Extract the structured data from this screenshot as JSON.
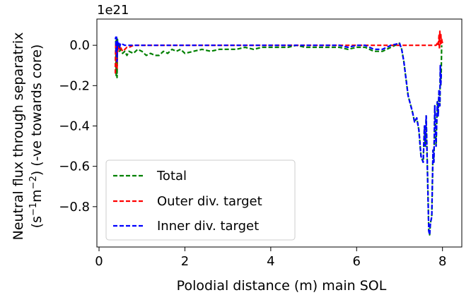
{
  "chart_data": {
    "type": "line",
    "offset_label": "1e21",
    "xlabel": "Polodial distance (m) main SOL",
    "ylabel_line1": "Neutral flux through separatrix",
    "ylabel_line2_prefix": "(s",
    "ylabel_line2_exp1": "−1",
    "ylabel_line2_mid": "m",
    "ylabel_line2_exp2": "−2",
    "ylabel_line2_suffix": ") (-ve towards core)",
    "xlim": [
      -0.05,
      8.45
    ],
    "ylim": [
      -1.0,
      0.13
    ],
    "x_ticks": [
      0,
      2,
      4,
      6,
      8
    ],
    "x_tick_labels": [
      "0",
      "2",
      "4",
      "6",
      "8"
    ],
    "y_ticks": [
      0.0,
      -0.2,
      -0.4,
      -0.6,
      -0.8
    ],
    "y_tick_labels": [
      "0.0",
      "−0.2",
      "−0.4",
      "−0.6",
      "−0.8"
    ],
    "legend_position": "lower-left",
    "grid": false,
    "series": [
      {
        "name": "Total",
        "color": "#008000",
        "x": [
          0.38,
          0.39,
          0.4,
          0.41,
          0.42,
          0.43,
          0.44,
          0.46,
          0.48,
          0.5,
          0.55,
          0.6,
          0.65,
          0.7,
          0.8,
          0.9,
          1.0,
          1.1,
          1.2,
          1.3,
          1.4,
          1.5,
          1.6,
          1.7,
          1.8,
          1.9,
          2.0,
          2.2,
          2.4,
          2.6,
          2.8,
          3.0,
          3.2,
          3.4,
          3.6,
          3.8,
          4.0,
          4.2,
          4.4,
          4.6,
          4.8,
          5.0,
          5.2,
          5.4,
          5.6,
          5.8,
          6.0,
          6.2,
          6.4,
          6.6,
          6.8,
          7.0,
          7.05,
          7.1,
          7.2,
          7.3,
          7.35,
          7.4,
          7.45,
          7.5,
          7.55,
          7.58,
          7.6,
          7.62,
          7.65,
          7.68,
          7.7,
          7.72,
          7.75,
          7.78,
          7.8,
          7.82,
          7.85,
          7.88,
          7.9,
          7.92,
          7.94,
          7.95,
          7.96,
          7.97,
          7.98
        ],
        "y": [
          -0.14,
          0.02,
          -0.15,
          0.03,
          -0.16,
          0.03,
          -0.02,
          0.01,
          -0.03,
          -0.02,
          -0.04,
          -0.03,
          -0.05,
          -0.03,
          -0.04,
          -0.02,
          -0.03,
          -0.05,
          -0.04,
          -0.05,
          -0.05,
          -0.03,
          -0.04,
          -0.02,
          -0.03,
          -0.02,
          -0.04,
          -0.03,
          -0.02,
          -0.03,
          -0.02,
          -0.02,
          -0.02,
          -0.01,
          -0.02,
          -0.01,
          -0.01,
          -0.01,
          -0.01,
          0.0,
          -0.01,
          -0.01,
          -0.01,
          -0.01,
          -0.01,
          -0.02,
          -0.01,
          -0.01,
          -0.03,
          -0.03,
          -0.01,
          0.01,
          -0.02,
          -0.08,
          -0.25,
          -0.33,
          -0.38,
          -0.36,
          -0.42,
          -0.55,
          -0.58,
          -0.4,
          -0.5,
          -0.35,
          -0.62,
          -0.92,
          -0.94,
          -0.88,
          -0.85,
          -0.52,
          -0.58,
          -0.3,
          -0.5,
          -0.28,
          -0.35,
          -0.22,
          -0.3,
          -0.1,
          -0.2,
          -0.14,
          0.0
        ]
      },
      {
        "name": "Outer div. target",
        "color": "#ff0000",
        "x": [
          0.38,
          0.39,
          0.4,
          0.41,
          0.42,
          0.43,
          0.44,
          0.46,
          0.48,
          0.5,
          0.55,
          0.6,
          0.65,
          0.7,
          0.8,
          1.0,
          1.5,
          2.0,
          3.0,
          4.0,
          5.0,
          6.0,
          7.0,
          7.5,
          7.8,
          7.85,
          7.88,
          7.9,
          7.92,
          7.93,
          7.94,
          7.95,
          7.96,
          7.97,
          7.98,
          8.0
        ],
        "y": [
          -0.14,
          0.01,
          -0.1,
          0.01,
          -0.12,
          0.0,
          -0.03,
          -0.01,
          -0.02,
          -0.01,
          -0.03,
          -0.02,
          -0.01,
          -0.01,
          0.0,
          0.0,
          0.0,
          0.0,
          0.0,
          0.0,
          0.0,
          0.0,
          0.0,
          0.0,
          0.0,
          0.0,
          0.01,
          0.0,
          0.05,
          -0.02,
          0.07,
          0.0,
          0.06,
          0.01,
          0.03,
          0.01
        ]
      },
      {
        "name": "Inner div. target",
        "color": "#0000ff",
        "x": [
          0.38,
          0.39,
          0.4,
          0.41,
          0.42,
          0.43,
          0.44,
          0.46,
          0.48,
          0.5,
          0.6,
          0.8,
          1.0,
          2.0,
          3.0,
          4.0,
          5.0,
          5.6,
          5.8,
          6.0,
          6.2,
          6.4,
          6.6,
          6.8,
          7.0,
          7.05,
          7.1,
          7.2,
          7.3,
          7.35,
          7.4,
          7.45,
          7.5,
          7.55,
          7.58,
          7.6,
          7.62,
          7.65,
          7.68,
          7.7,
          7.72,
          7.75,
          7.78,
          7.8,
          7.82,
          7.85,
          7.88,
          7.9,
          7.92,
          7.94,
          7.95,
          7.96,
          7.97,
          7.98
        ],
        "y": [
          0.03,
          0.04,
          -0.04,
          0.04,
          -0.08,
          0.02,
          0.0,
          0.01,
          -0.01,
          0.01,
          0.0,
          0.0,
          0.0,
          0.0,
          0.0,
          0.0,
          0.0,
          0.0,
          -0.01,
          0.0,
          0.0,
          -0.02,
          -0.02,
          0.0,
          0.01,
          -0.02,
          -0.08,
          -0.25,
          -0.33,
          -0.38,
          -0.36,
          -0.42,
          -0.55,
          -0.58,
          -0.4,
          -0.5,
          -0.35,
          -0.62,
          -0.92,
          -0.94,
          -0.88,
          -0.85,
          -0.52,
          -0.58,
          -0.3,
          -0.5,
          -0.28,
          -0.35,
          -0.22,
          -0.3,
          -0.1,
          -0.2,
          -0.14,
          -0.14
        ]
      }
    ]
  }
}
